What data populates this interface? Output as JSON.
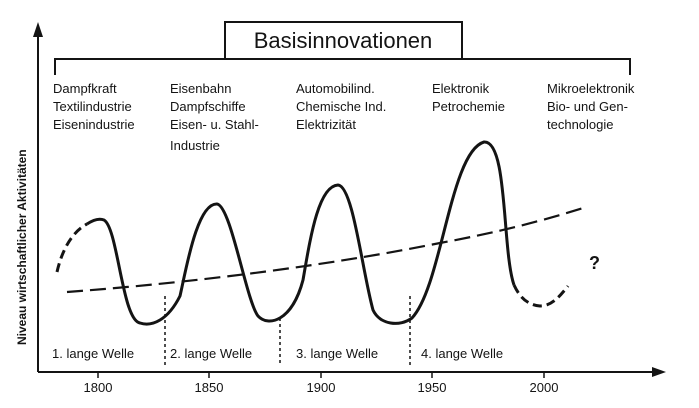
{
  "diagram": {
    "title": "Basisinnovationen",
    "y_axis_label": "Niveau wirtschaftlicher Aktivitäten",
    "x_ticks": [
      "1800",
      "1850",
      "1900",
      "1950",
      "2000"
    ],
    "question_mark": "?",
    "innovation_groups": [
      [
        "Dampfkraft",
        "Textilindustrie",
        "Eisenindustrie"
      ],
      [
        "Eisenbahn",
        "Dampfschiffe",
        "Eisen- u. Stahl-",
        "Industrie"
      ],
      [
        "Automobilind.",
        "Chemische Ind.",
        "Elektrizität"
      ],
      [
        "Elektronik",
        "Petrochemie"
      ],
      [
        "Mikroelektronik",
        "Bio- und Gen-",
        "technologie"
      ]
    ],
    "waves": [
      "1. lange Welle",
      "2. lange Welle",
      "3. lange Welle",
      "4. lange Welle"
    ]
  },
  "chart_data": {
    "type": "line",
    "xlabel": "",
    "ylabel": "Niveau wirtschaftlicher Aktivitäten",
    "title": "Basisinnovationen",
    "x_ticks": [
      1800,
      1850,
      1900,
      1950,
      2000
    ],
    "wave_boundaries": [
      1830,
      1880,
      1940
    ],
    "peaks": [
      1800,
      1853,
      1902,
      1970
    ],
    "troughs": [
      1832,
      1880,
      1940,
      1988
    ],
    "series": [
      {
        "style": "solid",
        "description_years": [
          1800,
          1985
        ]
      },
      {
        "style": "dashed",
        "description_years": [
          1780,
          2010
        ]
      }
    ]
  }
}
